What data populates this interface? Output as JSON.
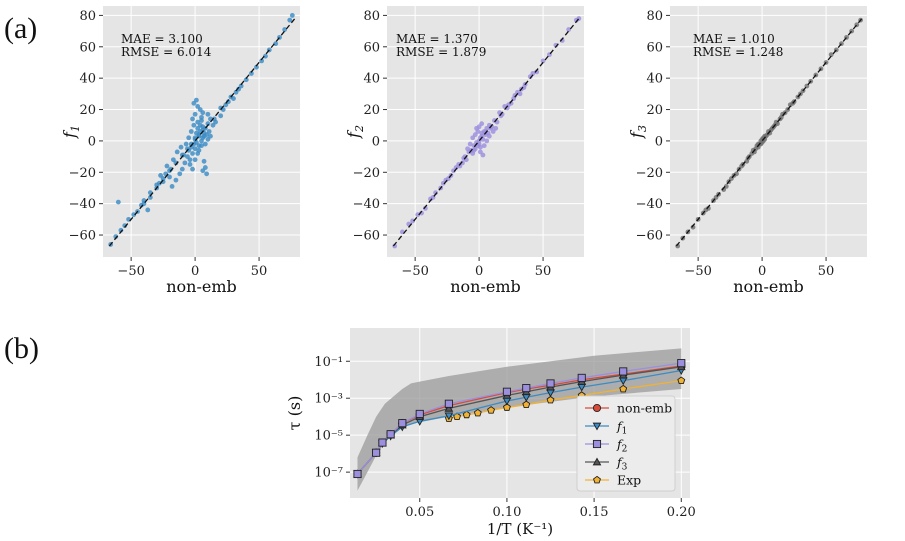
{
  "panel_labels": [
    "(a)",
    "(b)"
  ],
  "chart_data": [
    {
      "type": "scatter",
      "panel": "(a)",
      "xlabel": "non-emb",
      "ylabel": "f",
      "ylabel_sub": "1",
      "xlim": [
        -72,
        82
      ],
      "ylim": [
        -74,
        86
      ],
      "xticks": [
        -50,
        0,
        50
      ],
      "yticks": [
        -60,
        -40,
        -20,
        0,
        20,
        40,
        60,
        80
      ],
      "grid": true,
      "color": "#3b8bc4",
      "annotations": [
        "MAE = 3.100",
        "RMSE = 6.014"
      ],
      "points": [
        [
          -66,
          -66
        ],
        [
          -58,
          -57
        ],
        [
          -48,
          -47
        ],
        [
          -40,
          -38
        ],
        [
          -35,
          -33
        ],
        [
          -30,
          -28
        ],
        [
          -25,
          -24
        ],
        [
          -20,
          -19
        ],
        [
          -15,
          -14
        ],
        [
          -10,
          -9
        ],
        [
          -6,
          -5
        ],
        [
          -3,
          -2
        ],
        [
          0,
          1
        ],
        [
          3,
          4
        ],
        [
          6,
          7
        ],
        [
          10,
          11
        ],
        [
          15,
          14
        ],
        [
          20,
          21
        ],
        [
          26,
          25
        ],
        [
          32,
          31
        ],
        [
          40,
          39
        ],
        [
          48,
          47
        ],
        [
          55,
          54
        ],
        [
          63,
          62
        ],
        [
          70,
          71
        ],
        [
          74,
          77
        ],
        [
          76,
          80
        ],
        [
          -60,
          -39
        ],
        [
          -40,
          -40
        ],
        [
          -37,
          -44
        ],
        [
          -35,
          -36
        ],
        [
          -25,
          -26
        ],
        [
          -20,
          -23
        ],
        [
          -18,
          -29
        ],
        [
          -15,
          -25
        ],
        [
          -12,
          -21
        ],
        [
          -10,
          -18
        ],
        [
          -8,
          -14
        ],
        [
          -6,
          -10
        ],
        [
          -5,
          -6
        ],
        [
          -4,
          -12
        ],
        [
          -3,
          -4
        ],
        [
          -2,
          -8
        ],
        [
          -1,
          -2
        ],
        [
          0,
          -5
        ],
        [
          0,
          2
        ],
        [
          1,
          5
        ],
        [
          1,
          -1
        ],
        [
          2,
          8
        ],
        [
          2,
          12
        ],
        [
          3,
          3
        ],
        [
          3,
          -3
        ],
        [
          4,
          10
        ],
        [
          4,
          6
        ],
        [
          5,
          15
        ],
        [
          5,
          0
        ],
        [
          6,
          18
        ],
        [
          6,
          9
        ],
        [
          7,
          3
        ],
        [
          8,
          -2
        ],
        [
          9,
          -21
        ],
        [
          8,
          -17
        ],
        [
          7,
          -13
        ],
        [
          6,
          -19
        ],
        [
          -1,
          24
        ],
        [
          1,
          26
        ],
        [
          2,
          22
        ],
        [
          4,
          20
        ],
        [
          0,
          17
        ],
        [
          -2,
          14
        ],
        [
          -1,
          10
        ],
        [
          -3,
          6
        ],
        [
          5,
          13
        ],
        [
          10,
          17
        ],
        [
          12,
          14
        ],
        [
          14,
          10
        ],
        [
          16,
          12
        ],
        [
          20,
          16
        ],
        [
          22,
          20
        ],
        [
          24,
          23
        ],
        [
          28,
          28
        ],
        [
          30,
          27
        ],
        [
          34,
          33
        ],
        [
          -30,
          -30
        ],
        [
          -27,
          -22
        ],
        [
          -22,
          -16
        ],
        [
          -17,
          -12
        ],
        [
          -14,
          -7
        ],
        [
          -11,
          -4
        ],
        [
          -9,
          -9
        ],
        [
          -7,
          -2
        ],
        [
          -5,
          2
        ],
        [
          -4,
          -15
        ],
        [
          -2,
          -18
        ],
        [
          0,
          -12
        ],
        [
          2,
          -8
        ],
        [
          3,
          -6
        ],
        [
          5,
          -3
        ],
        [
          6,
          2
        ],
        [
          7,
          5
        ],
        [
          8,
          8
        ],
        [
          9,
          4
        ],
        [
          10,
          1
        ],
        [
          11,
          6
        ],
        [
          12,
          3
        ],
        [
          -45,
          -45
        ],
        [
          -42,
          -41
        ],
        [
          -52,
          -50
        ],
        [
          -28,
          -27
        ],
        [
          -23,
          -21
        ],
        [
          -19,
          -18
        ],
        [
          36,
          35
        ],
        [
          44,
          43
        ],
        [
          52,
          51
        ],
        [
          58,
          58
        ],
        [
          66,
          66
        ],
        [
          -62,
          -61
        ],
        [
          -55,
          -54
        ]
      ]
    },
    {
      "type": "scatter",
      "panel": "(a)",
      "xlabel": "non-emb",
      "ylabel": "f",
      "ylabel_sub": "2",
      "xlim": [
        -72,
        82
      ],
      "ylim": [
        -74,
        86
      ],
      "xticks": [
        -50,
        0,
        50
      ],
      "yticks": [
        -60,
        -40,
        -20,
        0,
        20,
        40,
        60,
        80
      ],
      "grid": true,
      "color": "#9b8fde",
      "annotations": [
        "MAE = 1.370",
        "RMSE = 1.879"
      ],
      "points": [
        [
          -66,
          -67
        ],
        [
          -60,
          -58
        ],
        [
          -55,
          -53
        ],
        [
          -48,
          -47
        ],
        [
          -42,
          -43
        ],
        [
          -38,
          -37
        ],
        [
          -34,
          -33
        ],
        [
          -30,
          -30
        ],
        [
          -26,
          -25
        ],
        [
          -22,
          -22
        ],
        [
          -18,
          -17
        ],
        [
          -15,
          -16
        ],
        [
          -12,
          -11
        ],
        [
          -10,
          -12
        ],
        [
          -8,
          -7
        ],
        [
          -6,
          -6
        ],
        [
          -5,
          -8
        ],
        [
          -4,
          -3
        ],
        [
          -3,
          -5
        ],
        [
          -2,
          -1
        ],
        [
          -1,
          -3
        ],
        [
          0,
          0
        ],
        [
          0,
          -2
        ],
        [
          1,
          2
        ],
        [
          1,
          -4
        ],
        [
          2,
          3
        ],
        [
          2,
          5
        ],
        [
          3,
          1
        ],
        [
          4,
          6
        ],
        [
          5,
          4
        ],
        [
          6,
          8
        ],
        [
          7,
          5
        ],
        [
          8,
          10
        ],
        [
          10,
          9
        ],
        [
          12,
          13
        ],
        [
          14,
          12
        ],
        [
          16,
          18
        ],
        [
          18,
          17
        ],
        [
          20,
          22
        ],
        [
          22,
          21
        ],
        [
          25,
          24
        ],
        [
          28,
          29
        ],
        [
          30,
          31
        ],
        [
          32,
          30
        ],
        [
          35,
          34
        ],
        [
          40,
          41
        ],
        [
          45,
          44
        ],
        [
          50,
          51
        ],
        [
          55,
          55
        ],
        [
          60,
          61
        ],
        [
          65,
          64
        ],
        [
          70,
          71
        ],
        [
          76,
          77
        ],
        [
          78,
          78
        ],
        [
          -3,
          4
        ],
        [
          -1,
          6
        ],
        [
          1,
          -7
        ],
        [
          3,
          -9
        ],
        [
          -2,
          8
        ],
        [
          0,
          9
        ],
        [
          2,
          11
        ],
        [
          -5,
          2
        ],
        [
          -7,
          -2
        ],
        [
          4,
          -3
        ],
        [
          6,
          0
        ],
        [
          -9,
          -5
        ],
        [
          8,
          3
        ],
        [
          11,
          6
        ],
        [
          13,
          8
        ],
        [
          -45,
          -46
        ],
        [
          -52,
          -51
        ],
        [
          -28,
          -27
        ],
        [
          -20,
          -19
        ],
        [
          36,
          36
        ],
        [
          42,
          43
        ],
        [
          -36,
          -36
        ],
        [
          -24,
          -24
        ],
        [
          -16,
          -15
        ],
        [
          -13,
          -14
        ],
        [
          17,
          16
        ],
        [
          23,
          23
        ],
        [
          27,
          27
        ],
        [
          33,
          33
        ],
        [
          -11,
          -10
        ],
        [
          9,
          8
        ],
        [
          -4,
          -6
        ],
        [
          5,
          6
        ]
      ]
    },
    {
      "type": "scatter",
      "panel": "(a)",
      "xlabel": "non-emb",
      "ylabel": "f",
      "ylabel_sub": "3",
      "xlim": [
        -72,
        82
      ],
      "ylim": [
        -74,
        86
      ],
      "xticks": [
        -50,
        0,
        50
      ],
      "yticks": [
        -60,
        -40,
        -20,
        0,
        20,
        40,
        60,
        80
      ],
      "grid": true,
      "color": "#707070",
      "annotations": [
        "MAE = 1.010",
        "RMSE = 1.248"
      ],
      "points": [
        [
          -66,
          -67
        ],
        [
          -62,
          -62
        ],
        [
          -58,
          -58
        ],
        [
          -54,
          -55
        ],
        [
          -50,
          -50
        ],
        [
          -46,
          -46
        ],
        [
          -42,
          -43
        ],
        [
          -38,
          -38
        ],
        [
          -34,
          -34
        ],
        [
          -30,
          -31
        ],
        [
          -26,
          -26
        ],
        [
          -22,
          -22
        ],
        [
          -20,
          -21
        ],
        [
          -18,
          -18
        ],
        [
          -15,
          -15
        ],
        [
          -12,
          -13
        ],
        [
          -10,
          -10
        ],
        [
          -8,
          -8
        ],
        [
          -6,
          -7
        ],
        [
          -5,
          -5
        ],
        [
          -4,
          -3
        ],
        [
          -3,
          -4
        ],
        [
          -2,
          -2
        ],
        [
          -1,
          0
        ],
        [
          0,
          -1
        ],
        [
          0,
          1
        ],
        [
          1,
          2
        ],
        [
          2,
          1
        ],
        [
          3,
          3
        ],
        [
          4,
          4
        ],
        [
          5,
          6
        ],
        [
          6,
          5
        ],
        [
          8,
          8
        ],
        [
          10,
          10
        ],
        [
          12,
          11
        ],
        [
          14,
          14
        ],
        [
          16,
          17
        ],
        [
          18,
          18
        ],
        [
          20,
          20
        ],
        [
          22,
          23
        ],
        [
          25,
          25
        ],
        [
          28,
          28
        ],
        [
          30,
          30
        ],
        [
          32,
          32
        ],
        [
          35,
          35
        ],
        [
          38,
          38
        ],
        [
          42,
          42
        ],
        [
          46,
          46
        ],
        [
          50,
          50
        ],
        [
          54,
          55
        ],
        [
          58,
          58
        ],
        [
          62,
          62
        ],
        [
          66,
          66
        ],
        [
          70,
          70
        ],
        [
          74,
          74
        ],
        [
          77,
          77
        ],
        [
          -24,
          -24
        ],
        [
          -16,
          -16
        ],
        [
          -11,
          -11
        ],
        [
          -7,
          -6
        ],
        [
          7,
          7
        ],
        [
          9,
          9
        ],
        [
          11,
          12
        ],
        [
          15,
          15
        ],
        [
          24,
          24
        ],
        [
          -28,
          -29
        ],
        [
          -36,
          -36
        ],
        [
          -44,
          -44
        ],
        [
          -1,
          -2
        ],
        [
          1,
          0
        ],
        [
          2,
          3
        ],
        [
          -3,
          -2
        ]
      ]
    },
    {
      "type": "line",
      "panel": "(b)",
      "xlabel": "1/T (K⁻¹)",
      "ylabel": "τ (s)",
      "xlim": [
        0.01,
        0.205
      ],
      "yscale": "log",
      "ylim_log10": [
        -8.4,
        0.8
      ],
      "xticks": [
        0.05,
        0.1,
        0.15,
        0.2
      ],
      "xtick_labels": [
        "0.05",
        "0.10",
        "0.15",
        "0.20"
      ],
      "yticks_log10": [
        -7,
        -5,
        -3,
        -1
      ],
      "ytick_labels": [
        "10⁻⁷",
        "10⁻⁵",
        "10⁻³",
        "10⁻¹"
      ],
      "grid": true,
      "legend_position": "bottom-right",
      "band": {
        "x": [
          0.0143,
          0.02,
          0.025,
          0.03,
          0.035,
          0.04,
          0.045,
          0.05,
          0.0667,
          0.1,
          0.125,
          0.15,
          0.2
        ],
        "upper_log10": [
          -6.2,
          -5.0,
          -4.0,
          -3.3,
          -2.9,
          -2.5,
          -2.2,
          -2.1,
          -1.8,
          -1.3,
          -1.0,
          -0.7,
          -0.3
        ],
        "lower_log10": [
          -8.0,
          -7.0,
          -6.1,
          -5.4,
          -4.9,
          -4.6,
          -4.4,
          -4.3,
          -4.0,
          -3.5,
          -3.2,
          -2.9,
          -2.5
        ]
      },
      "series": [
        {
          "name": "non-emb",
          "color": "#d94a3a",
          "marker": "circle",
          "x": [
            0.0143,
            0.025,
            0.0286,
            0.0333,
            0.04,
            0.05,
            0.0667,
            0.1,
            0.1111,
            0.125,
            0.1429,
            0.1667,
            0.2
          ],
          "y_log10": [
            -7.1,
            -5.95,
            -5.4,
            -4.95,
            -4.35,
            -3.9,
            -3.4,
            -2.7,
            -2.5,
            -2.3,
            -2.0,
            -1.7,
            -1.25
          ]
        },
        {
          "name": "f",
          "name_sub": "1",
          "color": "#3b8bc4",
          "marker": "triangle-down",
          "x": [
            0.0143,
            0.025,
            0.0286,
            0.0333,
            0.04,
            0.05,
            0.0667,
            0.1,
            0.1111,
            0.125,
            0.1429,
            0.1667,
            0.2
          ],
          "y_log10": [
            -7.1,
            -5.95,
            -5.45,
            -5.05,
            -4.55,
            -4.25,
            -3.95,
            -3.15,
            -2.95,
            -2.7,
            -2.4,
            -2.05,
            -1.5
          ]
        },
        {
          "name": "f",
          "name_sub": "2",
          "color": "#9b8fde",
          "marker": "square",
          "x": [
            0.0143,
            0.025,
            0.0286,
            0.0333,
            0.04,
            0.05,
            0.0667,
            0.1,
            0.1111,
            0.125,
            0.1429,
            0.1667,
            0.2
          ],
          "y_log10": [
            -7.1,
            -5.95,
            -5.4,
            -4.95,
            -4.35,
            -3.85,
            -3.3,
            -2.65,
            -2.45,
            -2.2,
            -1.9,
            -1.55,
            -1.1
          ]
        },
        {
          "name": "f",
          "name_sub": "3",
          "color": "#555555",
          "marker": "triangle-up",
          "x": [
            0.0143,
            0.025,
            0.0286,
            0.0333,
            0.04,
            0.05,
            0.0667,
            0.1,
            0.1111,
            0.125,
            0.1429,
            0.1667,
            0.2
          ],
          "y_log10": [
            -7.1,
            -5.95,
            -5.42,
            -5.0,
            -4.45,
            -4.0,
            -3.55,
            -2.85,
            -2.65,
            -2.4,
            -2.1,
            -1.75,
            -1.3
          ]
        },
        {
          "name": "Exp",
          "color": "#f2b233",
          "marker": "pentagon",
          "x": [
            0.0667,
            0.0714,
            0.0769,
            0.0833,
            0.0909,
            0.1,
            0.1111,
            0.125,
            0.1429,
            0.1667,
            0.2
          ],
          "y_log10": [
            -4.1,
            -4.0,
            -3.9,
            -3.8,
            -3.65,
            -3.5,
            -3.35,
            -3.1,
            -2.85,
            -2.5,
            -2.05
          ]
        }
      ]
    }
  ]
}
